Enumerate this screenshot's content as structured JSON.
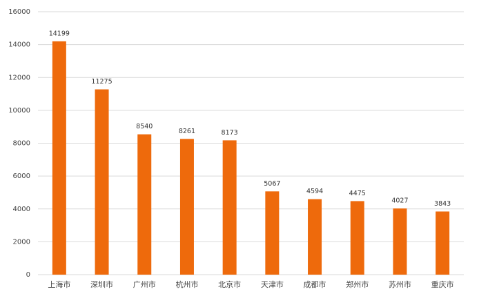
{
  "chart_data": {
    "type": "bar",
    "categories": [
      "上海市",
      "深圳市",
      "广州市",
      "杭州市",
      "北京市",
      "天津市",
      "成都市",
      "郑州市",
      "苏州市",
      "重庆市"
    ],
    "values": [
      14199,
      11275,
      8540,
      8261,
      8173,
      5067,
      4594,
      4475,
      4027,
      3843
    ],
    "color": "#ee6a0c",
    "ylim": [
      0,
      16000
    ],
    "yticks": [
      0,
      2000,
      4000,
      6000,
      8000,
      10000,
      12000,
      14000,
      16000
    ],
    "grid": true
  }
}
